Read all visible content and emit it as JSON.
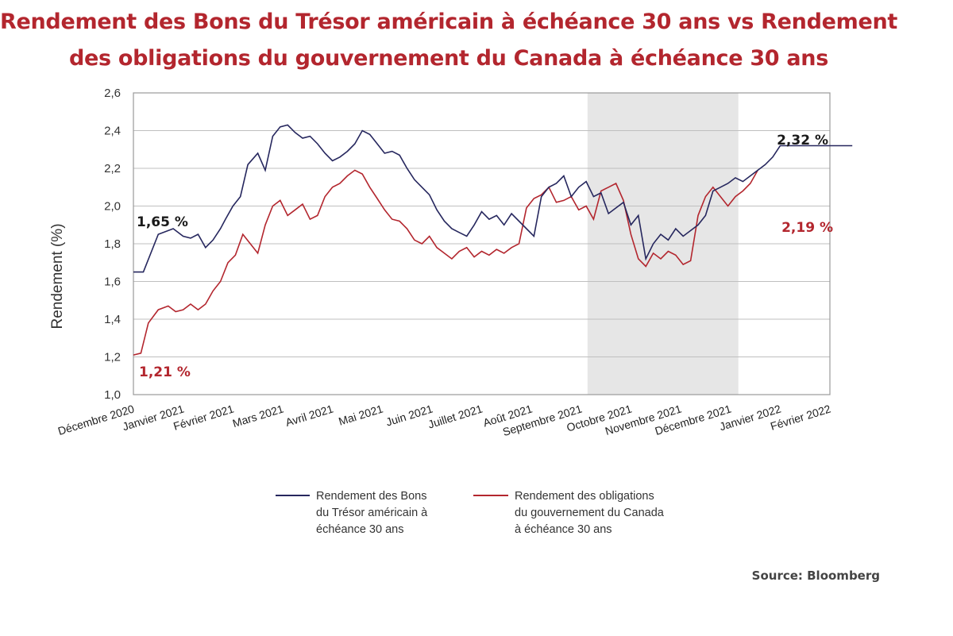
{
  "titles": {
    "line1": "Rendement des Bons du Trésor américain à échéance 30 ans vs Rendement",
    "line2": "des obligations du gouvernement du Canada à échéance 30 ans"
  },
  "source": "Source: Bloomberg",
  "colors": {
    "us": "#26275e",
    "ca": "#b3262e",
    "shade": "#e6e6e6",
    "grid": "#bfbfbf"
  },
  "chart_data": {
    "type": "line",
    "ylabel": "Rendement (%)",
    "ylim": [
      1.0,
      2.6
    ],
    "yticks": [
      "1,0",
      "1,2",
      "1,4",
      "1,6",
      "1,8",
      "2,0",
      "2,2",
      "2,4",
      "2,6"
    ],
    "grid": true,
    "x_start": "Décembre 2020",
    "x_end": "Février 2022",
    "xtick_labels": [
      "Décembre 2020",
      "Janvier 2021",
      "Février 2021",
      "Mars 2021",
      "Avril 2021",
      "Mai 2021",
      "Juin 2021",
      "Juillet 2021",
      "Août 2021",
      "Septembre 2021",
      "Octobre 2021",
      "Novembre 2021",
      "Décembre 2021",
      "Janvier 2022",
      "Février 2022"
    ],
    "shaded_region": {
      "from": "Septembre 2021",
      "to": "Décembre 2021"
    },
    "annotations": [
      {
        "text": "1,65 %",
        "series": "us"
      },
      {
        "text": "1,21 %",
        "series": "ca"
      },
      {
        "text": "2,32 %",
        "series": "us"
      },
      {
        "text": "2,19 %",
        "series": "ca"
      }
    ],
    "series": [
      {
        "id": "us",
        "name": "Rendement des Bons du Trésor américain à échéance 30 ans",
        "legend_lines": [
          "Rendement des Bons",
          "du Trésor américain à",
          "échéance 30 ans"
        ],
        "x": [
          0.0,
          0.2,
          0.5,
          0.8,
          1.0,
          1.15,
          1.3,
          1.45,
          1.6,
          1.75,
          1.85,
          2.0,
          2.15,
          2.3,
          2.5,
          2.65,
          2.8,
          2.95,
          3.1,
          3.25,
          3.4,
          3.55,
          3.7,
          3.85,
          4.0,
          4.15,
          4.3,
          4.45,
          4.6,
          4.75,
          4.9,
          5.05,
          5.2,
          5.35,
          5.5,
          5.65,
          5.8,
          5.95,
          6.1,
          6.25,
          6.4,
          6.55,
          6.7,
          6.85,
          7.0,
          7.15,
          7.3,
          7.45,
          7.6,
          7.75,
          7.9,
          8.05,
          8.2,
          8.35,
          8.5,
          8.65,
          8.8,
          8.95,
          9.1,
          9.25,
          9.4,
          9.55,
          9.7,
          9.85,
          10.0,
          10.15,
          10.3,
          10.45,
          10.6,
          10.75,
          10.9,
          11.05,
          11.2,
          11.35,
          11.5,
          11.65,
          11.8,
          11.95,
          12.1,
          12.25,
          12.4,
          12.55,
          12.7,
          12.85,
          13.0,
          13.15,
          13.3,
          13.45,
          13.6,
          13.75,
          13.9,
          14.05,
          14.2,
          14.35,
          14.45
        ],
        "values": [
          1.65,
          1.65,
          1.85,
          1.88,
          1.84,
          1.83,
          1.85,
          1.78,
          1.82,
          1.88,
          1.93,
          2.0,
          2.05,
          2.22,
          2.28,
          2.19,
          2.37,
          2.42,
          2.43,
          2.39,
          2.36,
          2.37,
          2.33,
          2.28,
          2.24,
          2.26,
          2.29,
          2.33,
          2.4,
          2.38,
          2.33,
          2.28,
          2.29,
          2.27,
          2.2,
          2.14,
          2.1,
          2.06,
          1.98,
          1.92,
          1.88,
          1.86,
          1.84,
          1.9,
          1.97,
          1.93,
          1.95,
          1.9,
          1.96,
          1.92,
          1.88,
          1.84,
          2.05,
          2.1,
          2.12,
          2.16,
          2.05,
          2.1,
          2.13,
          2.05,
          2.07,
          1.96,
          1.99,
          2.02,
          1.9,
          1.95,
          1.72,
          1.8,
          1.85,
          1.82,
          1.88,
          1.84,
          1.87,
          1.9,
          1.95,
          2.08,
          2.1,
          2.12,
          2.15,
          2.13,
          2.16,
          2.19,
          2.22,
          2.26,
          2.32,
          2.32,
          2.32,
          2.32,
          2.32,
          2.32,
          2.32,
          2.32,
          2.32,
          2.32,
          2.32
        ]
      },
      {
        "id": "ca",
        "name": "Rendement des obligations du gouvernement du Canada à échéance 30 ans",
        "legend_lines": [
          "Rendement des obligations",
          "du gouvernement du Canada",
          "à échéance 30 ans"
        ],
        "x": [
          0.0,
          0.15,
          0.3,
          0.5,
          0.7,
          0.85,
          1.0,
          1.15,
          1.3,
          1.45,
          1.6,
          1.75,
          1.9,
          2.05,
          2.2,
          2.35,
          2.5,
          2.65,
          2.8,
          2.95,
          3.1,
          3.25,
          3.4,
          3.55,
          3.7,
          3.85,
          4.0,
          4.15,
          4.3,
          4.45,
          4.6,
          4.75,
          4.9,
          5.05,
          5.2,
          5.35,
          5.5,
          5.65,
          5.8,
          5.95,
          6.1,
          6.25,
          6.4,
          6.55,
          6.7,
          6.85,
          7.0,
          7.15,
          7.3,
          7.45,
          7.6,
          7.75,
          7.9,
          8.05,
          8.2,
          8.35,
          8.5,
          8.65,
          8.8,
          8.95,
          9.1,
          9.25,
          9.4,
          9.55,
          9.7,
          9.85,
          10.0,
          10.15,
          10.3,
          10.45,
          10.6,
          10.75,
          10.9,
          11.05,
          11.2,
          11.35,
          11.5,
          11.65,
          11.8,
          11.95,
          12.1,
          12.25,
          12.4,
          12.55
        ],
        "values": [
          1.21,
          1.22,
          1.38,
          1.45,
          1.47,
          1.44,
          1.45,
          1.48,
          1.45,
          1.48,
          1.55,
          1.6,
          1.7,
          1.74,
          1.85,
          1.8,
          1.75,
          1.9,
          2.0,
          2.03,
          1.95,
          1.98,
          2.01,
          1.93,
          1.95,
          2.05,
          2.1,
          2.12,
          2.16,
          2.19,
          2.17,
          2.1,
          2.04,
          1.98,
          1.93,
          1.92,
          1.88,
          1.82,
          1.8,
          1.84,
          1.78,
          1.75,
          1.72,
          1.76,
          1.78,
          1.73,
          1.76,
          1.74,
          1.77,
          1.75,
          1.78,
          1.8,
          1.99,
          2.04,
          2.06,
          2.1,
          2.02,
          2.03,
          2.05,
          1.98,
          2.0,
          1.93,
          2.08,
          2.1,
          2.12,
          2.03,
          1.85,
          1.72,
          1.68,
          1.75,
          1.72,
          1.76,
          1.74,
          1.69,
          1.71,
          1.95,
          2.05,
          2.1,
          2.05,
          2.0,
          2.05,
          2.08,
          2.12,
          2.19
        ]
      }
    ]
  }
}
